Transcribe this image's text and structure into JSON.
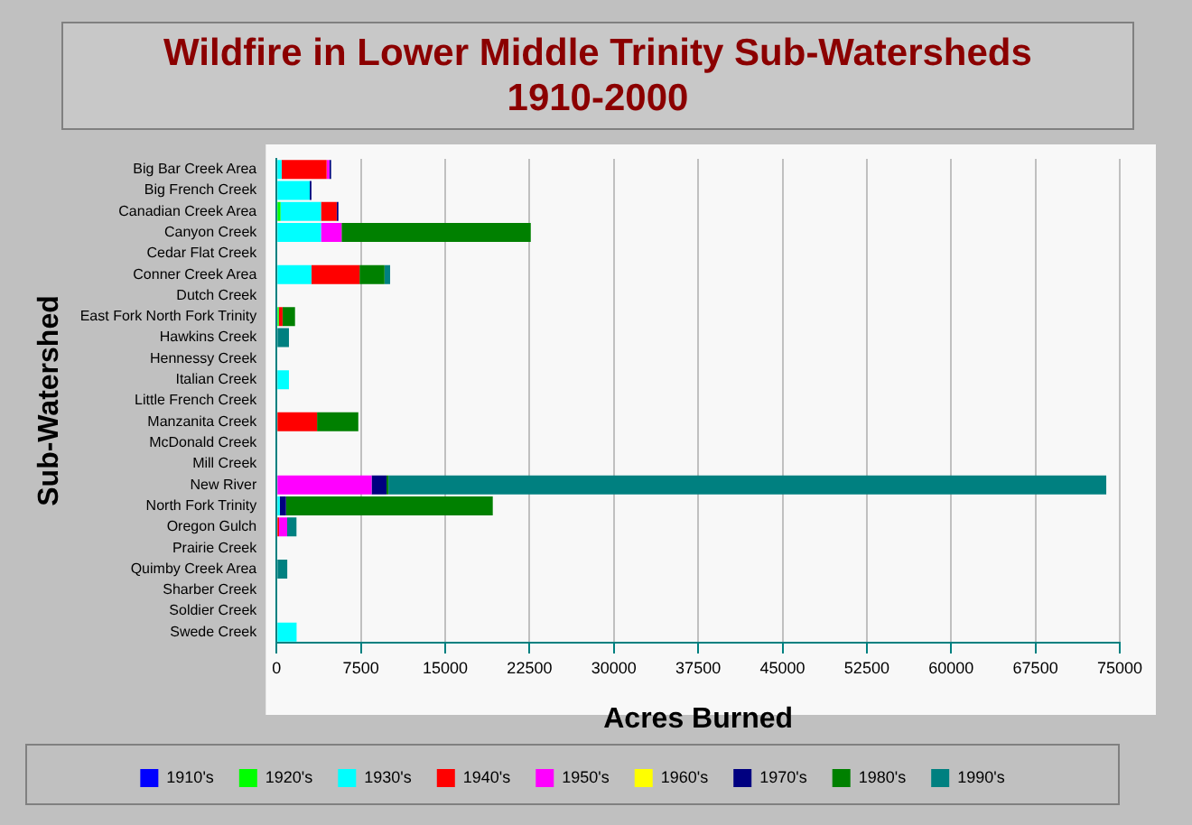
{
  "chart_data": {
    "type": "bar",
    "orientation": "horizontal",
    "stacked": true,
    "title": "Wildfire in Lower Middle Trinity Sub-Watersheds\n1910-2000",
    "xlabel": "Acres Burned",
    "ylabel": "Sub-Watershed",
    "categories": [
      "Big Bar Creek Area",
      "Big French Creek",
      "Canadian Creek Area",
      "Canyon Creek",
      "Cedar Flat Creek",
      "Conner Creek Area",
      "Dutch Creek",
      "East Fork North Fork Trinity",
      "Hawkins Creek",
      "Hennessy Creek",
      "Italian Creek",
      "Little French Creek",
      "Manzanita Creek",
      "McDonald Creek",
      "Mill Creek",
      "New River",
      "North Fork Trinity",
      "Oregon Gulch",
      "Prairie Creek",
      "Quimby Creek Area",
      "Sharber Creek",
      "Soldier Creek",
      "Swede Creek"
    ],
    "series": [
      {
        "name": "1910's",
        "color": "#0000ff",
        "values": [
          null,
          null,
          null,
          null,
          null,
          null,
          null,
          null,
          null,
          null,
          null,
          null,
          null,
          null,
          null,
          null,
          null,
          null,
          null,
          null,
          null,
          null,
          null
        ]
      },
      {
        "name": "1920's",
        "color": "#00ff00",
        "values": [
          null,
          null,
          350,
          null,
          null,
          null,
          null,
          200,
          null,
          null,
          null,
          null,
          null,
          null,
          null,
          null,
          null,
          null,
          null,
          null,
          null,
          null,
          null
        ]
      },
      {
        "name": "1930's",
        "color": "#00ffff",
        "values": [
          450,
          2950,
          3600,
          3950,
          null,
          3100,
          null,
          null,
          null,
          null,
          1100,
          null,
          null,
          null,
          null,
          null,
          280,
          null,
          null,
          null,
          null,
          null,
          1780
        ]
      },
      {
        "name": "1940's",
        "color": "#ff0000",
        "values": [
          4000,
          null,
          1400,
          null,
          null,
          4280,
          null,
          330,
          null,
          null,
          null,
          null,
          3600,
          null,
          null,
          null,
          null,
          220,
          null,
          null,
          null,
          null,
          null
        ]
      },
      {
        "name": "1950's",
        "color": "#ff00ff",
        "values": [
          250,
          null,
          null,
          1830,
          null,
          null,
          null,
          null,
          null,
          null,
          null,
          null,
          null,
          null,
          null,
          8450,
          null,
          720,
          null,
          null,
          null,
          null,
          null
        ]
      },
      {
        "name": "1960's",
        "color": "#ffff00",
        "values": [
          null,
          null,
          null,
          null,
          null,
          null,
          null,
          null,
          null,
          null,
          null,
          null,
          null,
          null,
          null,
          null,
          null,
          null,
          null,
          null,
          null,
          null,
          null
        ]
      },
      {
        "name": "1970's",
        "color": "#000080",
        "values": [
          150,
          150,
          150,
          null,
          null,
          null,
          null,
          null,
          null,
          null,
          null,
          null,
          null,
          null,
          null,
          1330,
          560,
          null,
          null,
          null,
          null,
          null,
          null
        ]
      },
      {
        "name": "1980's",
        "color": "#008000",
        "values": [
          null,
          null,
          null,
          16830,
          null,
          2220,
          null,
          1110,
          null,
          null,
          null,
          null,
          3670,
          null,
          null,
          170,
          18390,
          null,
          null,
          null,
          null,
          null,
          null
        ]
      },
      {
        "name": "1990's",
        "color": "#008080",
        "values": [
          null,
          null,
          null,
          null,
          null,
          500,
          null,
          null,
          1100,
          null,
          null,
          null,
          null,
          null,
          null,
          63850,
          null,
          830,
          null,
          950,
          null,
          null,
          null
        ]
      }
    ],
    "xlim": [
      0,
      75000
    ],
    "xticks": [
      0,
      7500,
      15000,
      22500,
      30000,
      37500,
      45000,
      52500,
      60000,
      67500,
      75000
    ],
    "grid": "x",
    "legend": "bottom"
  }
}
